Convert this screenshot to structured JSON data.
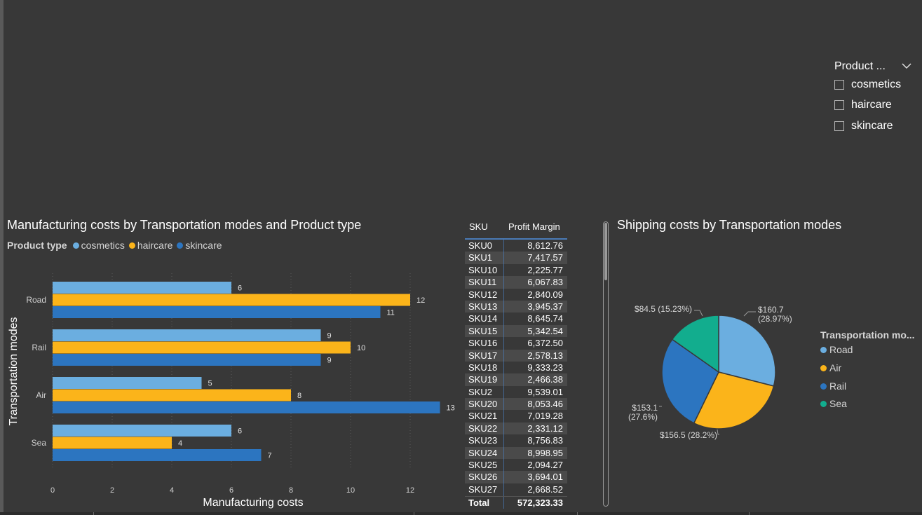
{
  "slicer": {
    "title": "Product ...",
    "items": [
      "cosmetics",
      "haircare",
      "skincare"
    ]
  },
  "bar_visual": {
    "title": "Manufacturing costs by Transportation modes and Product type",
    "legend_title": "Product type",
    "colors": {
      "cosmetics": "#6baee0",
      "haircare": "#fbb41a",
      "skincare": "#2c75c0"
    }
  },
  "table_visual": {
    "headers": {
      "sku": "SKU",
      "value": "Profit Margin"
    },
    "rows": [
      {
        "sku": "SKU0",
        "value": "8,612.76"
      },
      {
        "sku": "SKU1",
        "value": "7,417.57"
      },
      {
        "sku": "SKU10",
        "value": "2,225.77"
      },
      {
        "sku": "SKU11",
        "value": "6,067.83"
      },
      {
        "sku": "SKU12",
        "value": "2,840.09"
      },
      {
        "sku": "SKU13",
        "value": "3,945.37"
      },
      {
        "sku": "SKU14",
        "value": "8,645.74"
      },
      {
        "sku": "SKU15",
        "value": "5,342.54"
      },
      {
        "sku": "SKU16",
        "value": "6,372.50"
      },
      {
        "sku": "SKU17",
        "value": "2,578.13"
      },
      {
        "sku": "SKU18",
        "value": "9,333.23"
      },
      {
        "sku": "SKU19",
        "value": "2,466.38"
      },
      {
        "sku": "SKU2",
        "value": "9,539.01"
      },
      {
        "sku": "SKU20",
        "value": "8,053.46"
      },
      {
        "sku": "SKU21",
        "value": "7,019.28"
      },
      {
        "sku": "SKU22",
        "value": "2,331.12"
      },
      {
        "sku": "SKU23",
        "value": "8,756.83"
      },
      {
        "sku": "SKU24",
        "value": "8,998.95"
      },
      {
        "sku": "SKU25",
        "value": "2,094.27"
      },
      {
        "sku": "SKU26",
        "value": "3,694.01"
      },
      {
        "sku": "SKU27",
        "value": "2,668.52"
      }
    ],
    "total_label": "Total",
    "total_value": "572,323.33"
  },
  "pie_visual": {
    "title": "Shipping costs by Transportation modes",
    "legend_title": "Transportation mo..."
  },
  "chart_data": [
    {
      "type": "bar",
      "orientation": "horizontal",
      "title": "Manufacturing costs by Transportation modes and Product type",
      "xlabel": "Manufacturing costs",
      "ylabel": "Transportation modes",
      "categories": [
        "Road",
        "Rail",
        "Air",
        "Sea"
      ],
      "series": [
        {
          "name": "cosmetics",
          "color": "#6baee0",
          "values": [
            6,
            9,
            5,
            6
          ]
        },
        {
          "name": "haircare",
          "color": "#fbb41a",
          "values": [
            12,
            10,
            8,
            4
          ]
        },
        {
          "name": "skincare",
          "color": "#2c75c0",
          "values": [
            11,
            9,
            13,
            7
          ]
        }
      ],
      "xlim": [
        0,
        13
      ],
      "xticks": [
        0,
        2,
        4,
        6,
        8,
        10,
        12
      ],
      "grid": true,
      "legend": "top-left"
    },
    {
      "type": "pie",
      "title": "Shipping costs by Transportation modes",
      "legend_title": "Transportation mo...",
      "legend": "right",
      "slices": [
        {
          "name": "Road",
          "value": 160.7,
          "label": "$160.7 (28.97%)",
          "color": "#6baee0"
        },
        {
          "name": "Air",
          "value": 156.5,
          "label": "$156.5 (28.2%)",
          "color": "#fbb41a"
        },
        {
          "name": "Rail",
          "value": 153.1,
          "label": "$153.1 (27.6%)",
          "color": "#2c75c0"
        },
        {
          "name": "Sea",
          "value": 84.5,
          "label": "$84.5 (15.23%)",
          "color": "#12ad8e"
        }
      ]
    }
  ]
}
